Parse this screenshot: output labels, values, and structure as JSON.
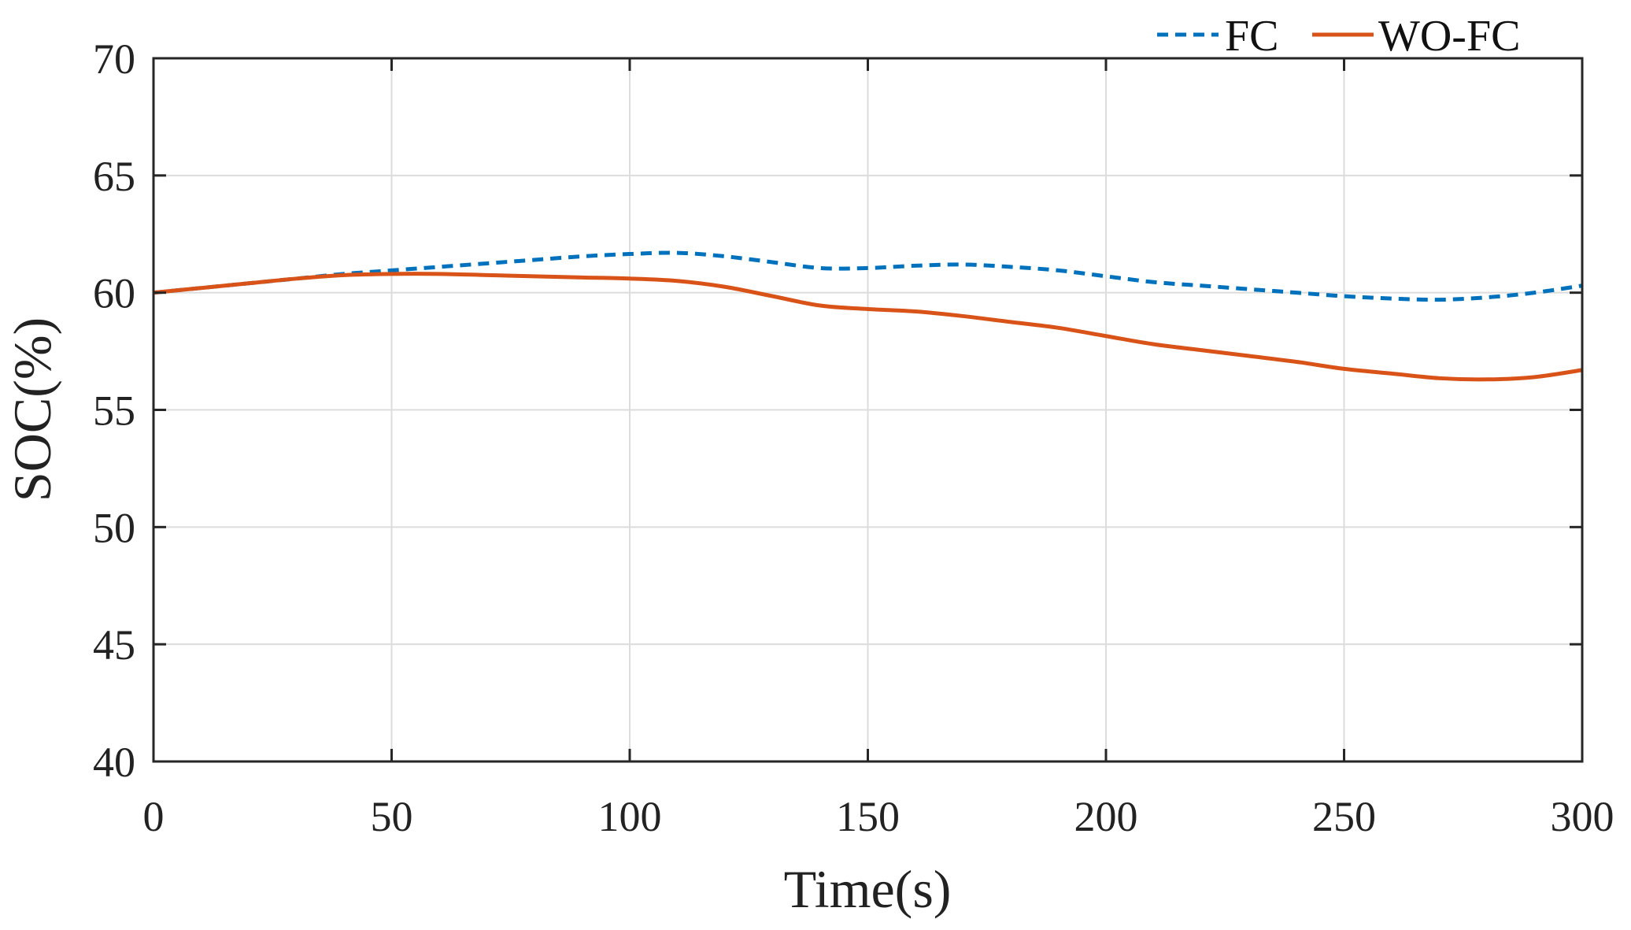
{
  "chart_data": {
    "type": "line",
    "title": "",
    "xlabel": "Time(s)",
    "ylabel": "SOC(%)",
    "xlim": [
      0,
      300
    ],
    "ylim": [
      40,
      70
    ],
    "xticks": [
      0,
      50,
      100,
      150,
      200,
      250,
      300
    ],
    "yticks": [
      40,
      45,
      50,
      55,
      60,
      65,
      70
    ],
    "grid": true,
    "legend_position": "top-right, above plot",
    "series": [
      {
        "name": "FC",
        "color": "#0072BD",
        "style": "dashed",
        "x": [
          0,
          10,
          20,
          30,
          40,
          50,
          60,
          70,
          80,
          90,
          100,
          110,
          120,
          130,
          140,
          150,
          160,
          170,
          180,
          190,
          200,
          210,
          220,
          230,
          240,
          250,
          260,
          270,
          280,
          290,
          300
        ],
        "y": [
          60.0,
          60.2,
          60.4,
          60.6,
          60.8,
          60.95,
          61.1,
          61.25,
          61.4,
          61.55,
          61.65,
          61.7,
          61.55,
          61.3,
          61.05,
          61.05,
          61.15,
          61.2,
          61.1,
          60.95,
          60.7,
          60.45,
          60.3,
          60.15,
          60.0,
          59.85,
          59.75,
          59.7,
          59.8,
          60.0,
          60.3
        ]
      },
      {
        "name": "WO-FC",
        "color": "#D95319",
        "style": "solid",
        "x": [
          0,
          10,
          20,
          30,
          40,
          50,
          60,
          70,
          80,
          90,
          100,
          110,
          120,
          130,
          140,
          150,
          160,
          170,
          180,
          190,
          200,
          210,
          220,
          230,
          240,
          250,
          260,
          270,
          280,
          290,
          300
        ],
        "y": [
          60.0,
          60.2,
          60.4,
          60.6,
          60.75,
          60.8,
          60.8,
          60.75,
          60.7,
          60.65,
          60.6,
          60.5,
          60.25,
          59.85,
          59.45,
          59.3,
          59.2,
          59.0,
          58.75,
          58.5,
          58.15,
          57.8,
          57.55,
          57.3,
          57.05,
          56.75,
          56.55,
          56.35,
          56.3,
          56.4,
          56.7
        ]
      }
    ]
  }
}
